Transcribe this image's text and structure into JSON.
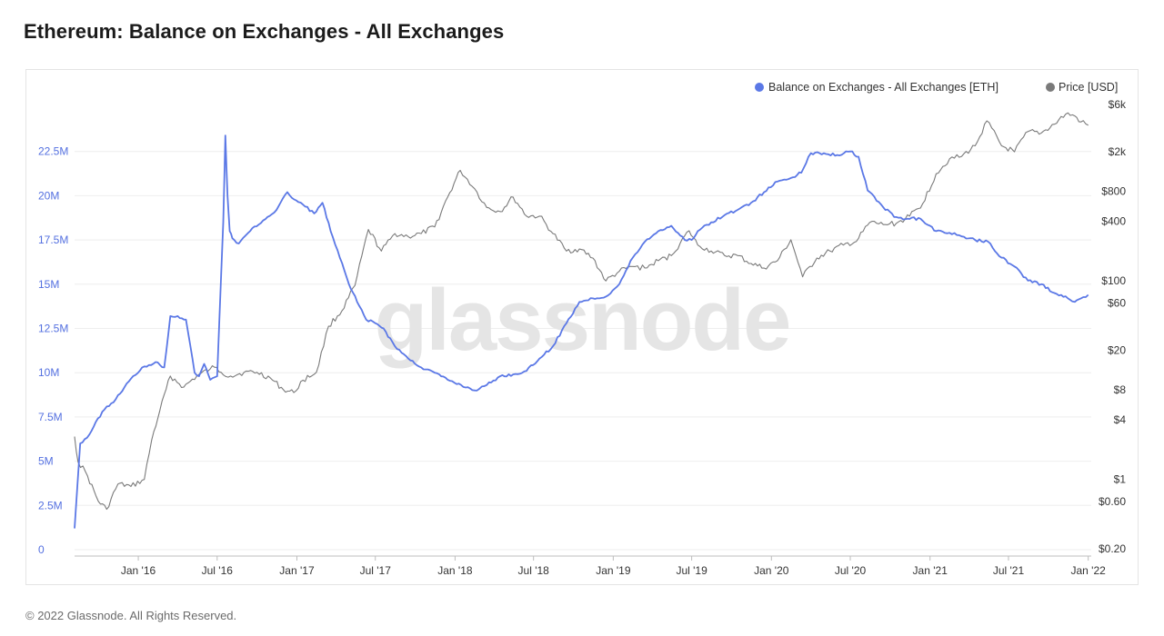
{
  "title": "Ethereum: Balance on Exchanges - All Exchanges",
  "footer": "© 2022 Glassnode. All Rights Reserved.",
  "watermark": "glassnode",
  "colors": {
    "balance": "#5b78e6",
    "price": "#7a7a7a",
    "grid": "#eeeeee"
  },
  "chart_data": {
    "type": "line",
    "title": "Ethereum: Balance on Exchanges - All Exchanges",
    "x_ticks": [
      "Jan '16",
      "Jul '16",
      "Jan '17",
      "Jul '17",
      "Jan '18",
      "Jul '18",
      "Jan '19",
      "Jul '19",
      "Jan '20",
      "Jul '20",
      "Jan '21",
      "Jul '21",
      "Jan '22"
    ],
    "y_left": {
      "ticks": [
        0,
        2.5,
        5,
        7.5,
        10,
        12.5,
        15,
        17.5,
        20,
        22.5
      ],
      "tick_labels": [
        "0",
        "2.5M",
        "5M",
        "7.5M",
        "10M",
        "12.5M",
        "15M",
        "17.5M",
        "20M",
        "22.5M"
      ],
      "range": [
        0,
        25
      ],
      "unit": "M ETH"
    },
    "y_right": {
      "scale": "log",
      "ticks": [
        0.2,
        0.6,
        1,
        4,
        8,
        20,
        60,
        100,
        400,
        800,
        2000,
        6000
      ],
      "tick_labels": [
        "$0.20",
        "$0.60",
        "$1",
        "$4",
        "$8",
        "$20",
        "$60",
        "$100",
        "$400",
        "$800",
        "$2k",
        "$6k"
      ]
    },
    "legend": {
      "placement": "top-right",
      "entries": [
        "Balance on Exchanges - All Exchanges [ETH]",
        "Price [USD]"
      ]
    },
    "series": [
      {
        "name": "Balance on Exchanges - All Exchanges [ETH]",
        "axis": "left",
        "color": "#5b78e6",
        "x": [
          "2015-08-07",
          "2015-08-20",
          "2015-09-10",
          "2015-10-10",
          "2015-11-10",
          "2015-12-10",
          "2016-01-10",
          "2016-02-10",
          "2016-03-01",
          "2016-03-15",
          "2016-04-01",
          "2016-04-20",
          "2016-05-10",
          "2016-05-20",
          "2016-06-01",
          "2016-06-15",
          "2016-07-01",
          "2016-07-15",
          "2016-07-20",
          "2016-07-25",
          "2016-07-30",
          "2016-08-05",
          "2016-08-20",
          "2016-09-15",
          "2016-10-15",
          "2016-11-15",
          "2016-12-10",
          "2016-12-25",
          "2017-01-15",
          "2017-02-10",
          "2017-03-01",
          "2017-03-20",
          "2017-04-10",
          "2017-05-01",
          "2017-05-20",
          "2017-06-10",
          "2017-07-01",
          "2017-07-20",
          "2017-08-15",
          "2017-09-15",
          "2017-10-15",
          "2017-11-15",
          "2017-12-15",
          "2018-01-15",
          "2018-02-15",
          "2018-03-15",
          "2018-04-15",
          "2018-05-15",
          "2018-06-15",
          "2018-07-15",
          "2018-08-15",
          "2018-09-15",
          "2018-10-15",
          "2018-11-15",
          "2018-12-15",
          "2019-01-15",
          "2019-02-15",
          "2019-03-15",
          "2019-04-15",
          "2019-05-15",
          "2019-06-15",
          "2019-07-01",
          "2019-07-15",
          "2019-08-15",
          "2019-09-15",
          "2019-10-15",
          "2019-11-15",
          "2019-12-15",
          "2020-01-15",
          "2020-02-15",
          "2020-03-10",
          "2020-04-01",
          "2020-05-01",
          "2020-06-01",
          "2020-07-01",
          "2020-07-20",
          "2020-08-10",
          "2020-09-10",
          "2020-10-10",
          "2020-11-10",
          "2020-12-10",
          "2021-01-01",
          "2021-01-15",
          "2021-02-15",
          "2021-03-15",
          "2021-04-15",
          "2021-05-15",
          "2021-06-15",
          "2021-07-15",
          "2021-08-15",
          "2021-09-15",
          "2021-10-15",
          "2021-11-15",
          "2021-12-01",
          "2021-12-15",
          "2022-01-01"
        ],
        "values": [
          1.2,
          6.0,
          6.5,
          7.8,
          8.5,
          9.5,
          10.3,
          10.6,
          10.3,
          13.2,
          13.2,
          13.0,
          10.0,
          9.8,
          10.5,
          9.6,
          9.8,
          18.5,
          23.4,
          20.0,
          18.0,
          17.6,
          17.3,
          18.0,
          18.6,
          19.2,
          20.2,
          19.8,
          19.5,
          19.0,
          19.6,
          18.0,
          16.5,
          15.0,
          14.0,
          13.0,
          12.8,
          12.5,
          11.5,
          10.8,
          10.3,
          10.0,
          9.6,
          9.3,
          9.0,
          9.3,
          9.8,
          9.9,
          10.1,
          10.8,
          11.5,
          12.8,
          14.0,
          14.2,
          14.3,
          15.0,
          16.5,
          17.4,
          18.0,
          18.3,
          17.5,
          17.5,
          18.0,
          18.5,
          18.9,
          19.2,
          19.6,
          20.2,
          20.8,
          21.0,
          21.3,
          22.4,
          22.4,
          22.3,
          22.5,
          22.2,
          20.3,
          19.5,
          18.8,
          18.7,
          18.7,
          18.3,
          18.0,
          17.9,
          17.7,
          17.5,
          17.4,
          16.5,
          16.0,
          15.2,
          15.0,
          14.5,
          14.2,
          14.0,
          14.2,
          14.4
        ]
      },
      {
        "name": "Price [USD]",
        "axis": "right",
        "color": "#7a7a7a",
        "x": [
          "2015-08-07",
          "2015-08-15",
          "2015-09-01",
          "2015-10-01",
          "2015-10-20",
          "2015-11-15",
          "2015-12-15",
          "2016-01-15",
          "2016-02-01",
          "2016-02-20",
          "2016-03-15",
          "2016-04-15",
          "2016-05-15",
          "2016-06-15",
          "2016-06-25",
          "2016-07-10",
          "2016-08-01",
          "2016-09-01",
          "2016-10-01",
          "2016-11-01",
          "2016-12-01",
          "2016-12-25",
          "2017-01-15",
          "2017-02-15",
          "2017-03-15",
          "2017-04-15",
          "2017-05-15",
          "2017-06-15",
          "2017-07-15",
          "2017-08-15",
          "2017-09-15",
          "2017-10-15",
          "2017-11-15",
          "2017-12-15",
          "2018-01-13",
          "2018-02-15",
          "2018-03-15",
          "2018-04-15",
          "2018-05-15",
          "2018-06-15",
          "2018-07-15",
          "2018-08-15",
          "2018-09-15",
          "2018-10-15",
          "2018-11-15",
          "2018-12-15",
          "2019-01-15",
          "2019-02-15",
          "2019-03-15",
          "2019-04-15",
          "2019-05-15",
          "2019-06-25",
          "2019-07-15",
          "2019-08-15",
          "2019-09-15",
          "2019-10-15",
          "2019-11-15",
          "2019-12-15",
          "2020-01-15",
          "2020-02-15",
          "2020-03-13",
          "2020-04-15",
          "2020-05-15",
          "2020-06-15",
          "2020-07-15",
          "2020-08-15",
          "2020-09-15",
          "2020-10-15",
          "2020-11-15",
          "2020-12-15",
          "2021-01-15",
          "2021-02-15",
          "2021-03-15",
          "2021-04-15",
          "2021-05-12",
          "2021-06-15",
          "2021-07-15",
          "2021-08-15",
          "2021-09-15",
          "2021-10-15",
          "2021-11-10",
          "2021-12-01",
          "2021-12-15",
          "2022-01-01"
        ],
        "values": [
          2.7,
          1.5,
          1.2,
          0.6,
          0.5,
          0.9,
          0.85,
          1.0,
          2.5,
          5.0,
          11.0,
          8.5,
          11.0,
          13.0,
          13.5,
          12.0,
          11.0,
          12.0,
          12.0,
          10.5,
          8.0,
          7.5,
          10.0,
          12.0,
          35.0,
          50.0,
          90.0,
          330.0,
          200.0,
          300.0,
          280.0,
          300.0,
          350.0,
          700.0,
          1300.0,
          850.0,
          550.0,
          500.0,
          700.0,
          450.0,
          450.0,
          300.0,
          200.0,
          210.0,
          170.0,
          100.0,
          125.0,
          140.0,
          135.0,
          160.0,
          180.0,
          320.0,
          230.0,
          200.0,
          180.0,
          180.0,
          150.0,
          135.0,
          160.0,
          260.0,
          110.0,
          170.0,
          200.0,
          230.0,
          250.0,
          390.0,
          370.0,
          380.0,
          450.0,
          600.0,
          1200.0,
          1700.0,
          1800.0,
          2300.0,
          4100.0,
          2300.0,
          2000.0,
          3200.0,
          3100.0,
          3800.0,
          4800.0,
          4600.0,
          4000.0,
          3700.0
        ]
      }
    ]
  }
}
